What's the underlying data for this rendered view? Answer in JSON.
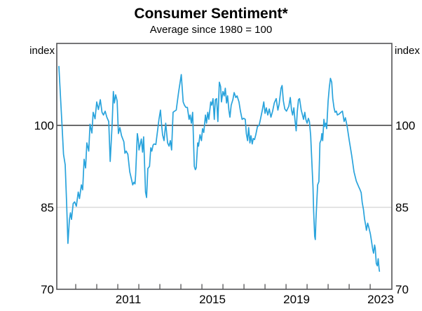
{
  "header": {
    "title": "Consumer Sentiment*",
    "subtitle": "Average since 1980 = 100"
  },
  "axes": {
    "left_unit_label": "index",
    "right_unit_label": "index"
  },
  "chart_data": {
    "type": "line",
    "title": "Consumer Sentiment*",
    "subtitle": "Average since 1980 = 100",
    "ylabel": "index",
    "ylim": [
      70,
      115
    ],
    "xlim": [
      2008.1,
      2024.03
    ],
    "y_ticks": [
      70,
      85,
      100
    ],
    "x_labels": [
      2011,
      2015,
      2019,
      2023
    ],
    "x_tick_years": [
      2009,
      2010,
      2011,
      2012,
      2013,
      2014,
      2015,
      2016,
      2017,
      2018,
      2019,
      2020,
      2021,
      2022,
      2023
    ],
    "gridlines": [
      {
        "value": 85,
        "emphasis": "light"
      },
      {
        "value": 100,
        "emphasis": "strong"
      }
    ],
    "legend_position": "none",
    "grid": "horizontal-only",
    "colors": {
      "line": "#29a3dc",
      "grid_light": "#c9c9c9",
      "grid_strong": "#545456",
      "frame": "#545456",
      "text": "#000000"
    },
    "series": [
      {
        "name": "Consumer sentiment (average since 1980 = 100)",
        "points": [
          [
            2008.2,
            110.8
          ],
          [
            2008.28,
            105.0
          ],
          [
            2008.37,
            98.5
          ],
          [
            2008.42,
            94.7
          ],
          [
            2008.5,
            92.8
          ],
          [
            2008.57,
            85.5
          ],
          [
            2008.63,
            78.4
          ],
          [
            2008.7,
            82.7
          ],
          [
            2008.75,
            84.0
          ],
          [
            2008.8,
            82.8
          ],
          [
            2008.88,
            85.7
          ],
          [
            2008.95,
            86.0
          ],
          [
            2009.03,
            85.2
          ],
          [
            2009.12,
            87.8
          ],
          [
            2009.18,
            86.6
          ],
          [
            2009.27,
            89.1
          ],
          [
            2009.33,
            88.2
          ],
          [
            2009.4,
            93.8
          ],
          [
            2009.47,
            92.2
          ],
          [
            2009.53,
            96.8
          ],
          [
            2009.62,
            95.3
          ],
          [
            2009.68,
            100.2
          ],
          [
            2009.77,
            98.6
          ],
          [
            2009.83,
            102.4
          ],
          [
            2009.92,
            101.2
          ],
          [
            2010.0,
            104.3
          ],
          [
            2010.08,
            102.9
          ],
          [
            2010.17,
            104.7
          ],
          [
            2010.25,
            102.4
          ],
          [
            2010.32,
            101.9
          ],
          [
            2010.4,
            102.6
          ],
          [
            2010.48,
            101.5
          ],
          [
            2010.57,
            100.7
          ],
          [
            2010.64,
            93.4
          ],
          [
            2010.73,
            100.0
          ],
          [
            2010.79,
            106.2
          ],
          [
            2010.84,
            104.1
          ],
          [
            2010.9,
            105.6
          ],
          [
            2010.97,
            104.5
          ],
          [
            2011.03,
            98.5
          ],
          [
            2011.1,
            99.6
          ],
          [
            2011.18,
            98.1
          ],
          [
            2011.29,
            97.0
          ],
          [
            2011.34,
            94.9
          ],
          [
            2011.4,
            95.3
          ],
          [
            2011.48,
            94.7
          ],
          [
            2011.57,
            91.5
          ],
          [
            2011.66,
            90.0
          ],
          [
            2011.71,
            89.1
          ],
          [
            2011.77,
            89.6
          ],
          [
            2011.82,
            89.3
          ],
          [
            2011.85,
            91.0
          ],
          [
            2011.93,
            98.5
          ],
          [
            2011.98,
            97.2
          ],
          [
            2012.01,
            95.5
          ],
          [
            2012.12,
            97.5
          ],
          [
            2012.18,
            95.1
          ],
          [
            2012.23,
            97.9
          ],
          [
            2012.32,
            87.8
          ],
          [
            2012.37,
            86.8
          ],
          [
            2012.43,
            92.1
          ],
          [
            2012.51,
            92.5
          ],
          [
            2012.57,
            95.9
          ],
          [
            2012.62,
            95.3
          ],
          [
            2012.68,
            96.4
          ],
          [
            2012.73,
            96.6
          ],
          [
            2012.81,
            96.5
          ],
          [
            2012.96,
            101.1
          ],
          [
            2013.03,
            102.8
          ],
          [
            2013.07,
            100.7
          ],
          [
            2013.13,
            98.3
          ],
          [
            2013.2,
            97.2
          ],
          [
            2013.28,
            100.4
          ],
          [
            2013.37,
            96.8
          ],
          [
            2013.44,
            96.2
          ],
          [
            2013.5,
            97.2
          ],
          [
            2013.56,
            95.5
          ],
          [
            2013.63,
            102.4
          ],
          [
            2013.7,
            102.6
          ],
          [
            2013.78,
            102.8
          ],
          [
            2013.89,
            106.0
          ],
          [
            2014.02,
            109.3
          ],
          [
            2014.11,
            104.3
          ],
          [
            2014.17,
            103.7
          ],
          [
            2014.24,
            103.3
          ],
          [
            2014.31,
            103.3
          ],
          [
            2014.39,
            101.1
          ],
          [
            2014.44,
            101.9
          ],
          [
            2014.5,
            100.4
          ],
          [
            2014.56,
            102.4
          ],
          [
            2014.64,
            92.5
          ],
          [
            2014.69,
            91.9
          ],
          [
            2014.73,
            92.2
          ],
          [
            2014.8,
            96.8
          ],
          [
            2014.84,
            96.2
          ],
          [
            2014.91,
            98.3
          ],
          [
            2014.98,
            97.2
          ],
          [
            2015.03,
            99.4
          ],
          [
            2015.09,
            98.7
          ],
          [
            2015.17,
            101.9
          ],
          [
            2015.22,
            100.4
          ],
          [
            2015.28,
            102.4
          ],
          [
            2015.33,
            101.1
          ],
          [
            2015.42,
            104.3
          ],
          [
            2015.47,
            103.7
          ],
          [
            2015.53,
            104.9
          ],
          [
            2015.59,
            101.1
          ],
          [
            2015.64,
            104.7
          ],
          [
            2015.7,
            104.9
          ],
          [
            2015.76,
            100.7
          ],
          [
            2015.83,
            107.9
          ],
          [
            2015.89,
            107.1
          ],
          [
            2015.93,
            104.3
          ],
          [
            2016.0,
            106.2
          ],
          [
            2016.06,
            105.4
          ],
          [
            2016.11,
            106.8
          ],
          [
            2016.17,
            104.1
          ],
          [
            2016.22,
            105.4
          ],
          [
            2016.28,
            102.8
          ],
          [
            2016.33,
            101.5
          ],
          [
            2016.39,
            103.7
          ],
          [
            2016.47,
            104.7
          ],
          [
            2016.53,
            106.0
          ],
          [
            2016.61,
            105.1
          ],
          [
            2016.67,
            105.4
          ],
          [
            2016.76,
            104.3
          ],
          [
            2016.83,
            102.6
          ],
          [
            2016.91,
            101.1
          ],
          [
            2016.98,
            101.3
          ],
          [
            2017.06,
            101.1
          ],
          [
            2017.11,
            98.5
          ],
          [
            2017.17,
            97.2
          ],
          [
            2017.22,
            99.6
          ],
          [
            2017.28,
            96.8
          ],
          [
            2017.33,
            98.1
          ],
          [
            2017.39,
            96.6
          ],
          [
            2017.44,
            97.6
          ],
          [
            2017.5,
            97.4
          ],
          [
            2017.56,
            98.3
          ],
          [
            2017.64,
            99.8
          ],
          [
            2017.72,
            100.0
          ],
          [
            2017.78,
            101.1
          ],
          [
            2017.87,
            102.8
          ],
          [
            2017.94,
            104.3
          ],
          [
            2018.0,
            102.2
          ],
          [
            2018.06,
            103.2
          ],
          [
            2018.13,
            101.9
          ],
          [
            2018.2,
            103.0
          ],
          [
            2018.28,
            101.5
          ],
          [
            2018.36,
            102.6
          ],
          [
            2018.44,
            104.1
          ],
          [
            2018.53,
            104.9
          ],
          [
            2018.61,
            102.8
          ],
          [
            2018.67,
            103.9
          ],
          [
            2018.76,
            106.8
          ],
          [
            2018.81,
            107.3
          ],
          [
            2018.87,
            104.5
          ],
          [
            2018.94,
            103.0
          ],
          [
            2019.02,
            102.6
          ],
          [
            2019.13,
            103.5
          ],
          [
            2019.2,
            105.1
          ],
          [
            2019.26,
            102.8
          ],
          [
            2019.31,
            101.9
          ],
          [
            2019.37,
            103.2
          ],
          [
            2019.42,
            101.1
          ],
          [
            2019.48,
            99.0
          ],
          [
            2019.53,
            102.4
          ],
          [
            2019.59,
            104.7
          ],
          [
            2019.64,
            104.9
          ],
          [
            2019.72,
            102.8
          ],
          [
            2019.78,
            101.9
          ],
          [
            2019.83,
            101.1
          ],
          [
            2019.89,
            102.4
          ],
          [
            2019.94,
            101.1
          ],
          [
            2020.0,
            100.4
          ],
          [
            2020.06,
            101.3
          ],
          [
            2020.11,
            100.7
          ],
          [
            2020.17,
            98.1
          ],
          [
            2020.22,
            93.8
          ],
          [
            2020.28,
            88.7
          ],
          [
            2020.31,
            84.4
          ],
          [
            2020.36,
            79.7
          ],
          [
            2020.39,
            79.1
          ],
          [
            2020.42,
            82.7
          ],
          [
            2020.5,
            89.1
          ],
          [
            2020.56,
            89.7
          ],
          [
            2020.61,
            96.8
          ],
          [
            2020.67,
            97.4
          ],
          [
            2020.7,
            98.5
          ],
          [
            2020.74,
            97.2
          ],
          [
            2020.8,
            101.1
          ],
          [
            2020.84,
            99.8
          ],
          [
            2020.89,
            100.4
          ],
          [
            2020.93,
            99.4
          ],
          [
            2021.0,
            104.5
          ],
          [
            2021.06,
            107.1
          ],
          [
            2021.11,
            108.6
          ],
          [
            2021.17,
            107.9
          ],
          [
            2021.22,
            104.9
          ],
          [
            2021.28,
            103.2
          ],
          [
            2021.33,
            102.4
          ],
          [
            2021.39,
            102.6
          ],
          [
            2021.44,
            101.9
          ],
          [
            2021.53,
            102.1
          ],
          [
            2021.61,
            102.4
          ],
          [
            2021.68,
            102.6
          ],
          [
            2021.76,
            100.7
          ],
          [
            2021.82,
            101.4
          ],
          [
            2021.9,
            99.9
          ],
          [
            2022.01,
            97.1
          ],
          [
            2022.12,
            94.5
          ],
          [
            2022.23,
            91.5
          ],
          [
            2022.34,
            89.8
          ],
          [
            2022.46,
            88.7
          ],
          [
            2022.51,
            88.3
          ],
          [
            2022.57,
            87.7
          ],
          [
            2022.62,
            85.9
          ],
          [
            2022.68,
            84.6
          ],
          [
            2022.73,
            82.9
          ],
          [
            2022.79,
            81.6
          ],
          [
            2022.82,
            80.8
          ],
          [
            2022.88,
            82.1
          ],
          [
            2022.93,
            81.4
          ],
          [
            2023.01,
            80.1
          ],
          [
            2023.07,
            78.6
          ],
          [
            2023.12,
            77.3
          ],
          [
            2023.16,
            76.6
          ],
          [
            2023.21,
            78.1
          ],
          [
            2023.24,
            77.5
          ],
          [
            2023.29,
            74.7
          ],
          [
            2023.34,
            74.3
          ],
          [
            2023.38,
            75.6
          ],
          [
            2023.42,
            73.9
          ],
          [
            2023.44,
            73.3
          ]
        ]
      }
    ]
  }
}
